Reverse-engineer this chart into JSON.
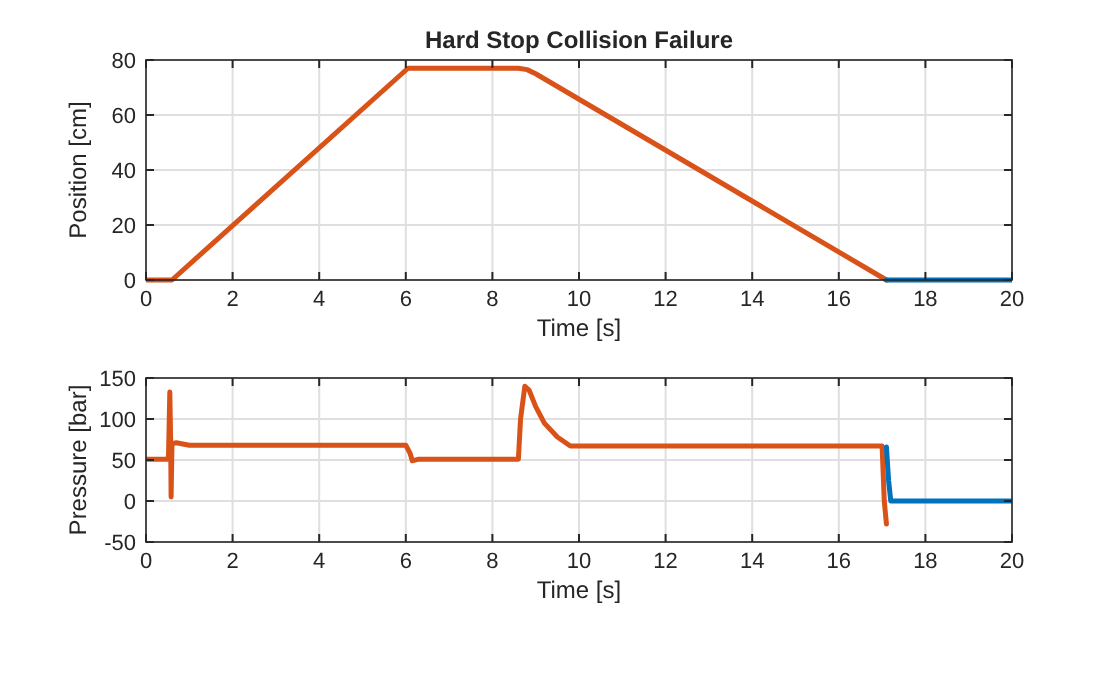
{
  "chart_data": [
    {
      "type": "line",
      "title": "Hard Stop Collision Failure",
      "xlabel": "Time [s]",
      "ylabel": "Position [cm]",
      "xlim": [
        0,
        20
      ],
      "xticks": [
        0,
        2,
        4,
        6,
        8,
        10,
        12,
        14,
        16,
        18,
        20
      ],
      "ylim": [
        0,
        80
      ],
      "yticks": [
        0,
        20,
        40,
        60,
        80
      ],
      "grid": true,
      "series": [
        {
          "color": "#d95319",
          "x": [
            0,
            0.6,
            6.05,
            8.6,
            8.8,
            9,
            17.1
          ],
          "values": [
            0,
            0,
            77,
            77,
            76.5,
            75,
            0
          ]
        },
        {
          "color": "#0072bd",
          "x": [
            17.1,
            20
          ],
          "values": [
            0,
            0
          ]
        }
      ]
    },
    {
      "type": "line",
      "xlabel": "Time [s]",
      "ylabel": "Pressure [bar]",
      "xlim": [
        0,
        20
      ],
      "xticks": [
        0,
        2,
        4,
        6,
        8,
        10,
        12,
        14,
        16,
        18,
        20
      ],
      "ylim": [
        -50,
        150
      ],
      "yticks": [
        -50,
        0,
        50,
        100,
        150
      ],
      "grid": true,
      "series": [
        {
          "color": "#d95319",
          "x": [
            0,
            0.5,
            0.52,
            0.55,
            0.57,
            0.58,
            0.6,
            0.7,
            1,
            6,
            6.1,
            6.15,
            6.3,
            8.6,
            8.65,
            8.75,
            8.85,
            9,
            9.2,
            9.5,
            9.8,
            17,
            17.05,
            17.1
          ],
          "values": [
            51,
            51,
            55,
            133,
            70,
            5,
            70,
            71,
            68,
            68,
            58,
            49,
            51,
            51,
            100,
            140,
            135,
            115,
            95,
            78,
            67,
            67,
            0,
            -28
          ]
        },
        {
          "color": "#0072bd",
          "x": [
            17.1,
            17.15,
            17.2,
            20
          ],
          "values": [
            66,
            25,
            0,
            0
          ]
        }
      ]
    }
  ]
}
